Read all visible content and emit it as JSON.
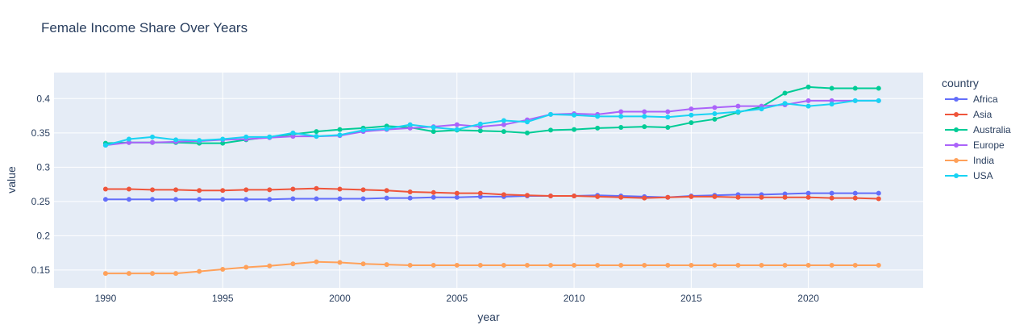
{
  "chart_data": {
    "type": "line",
    "title": "Female Income Share Over Years",
    "xlabel": "year",
    "ylabel": "value",
    "legend_title": "country",
    "legend_position": "right",
    "grid": true,
    "xlim": [
      1987.8,
      2024.9
    ],
    "ylim": [
      0.124,
      0.438
    ],
    "x_ticks": [
      1990,
      1995,
      2000,
      2005,
      2010,
      2015,
      2020
    ],
    "y_ticks": [
      0.15,
      0.2,
      0.25,
      0.3,
      0.35,
      0.4
    ],
    "y_tick_labels": [
      "0.15",
      "0.2",
      "0.25",
      "0.3",
      "0.35",
      "0.4"
    ],
    "x": [
      1990,
      1991,
      1992,
      1993,
      1994,
      1995,
      1996,
      1997,
      1998,
      1999,
      2000,
      2001,
      2002,
      2003,
      2004,
      2005,
      2006,
      2007,
      2008,
      2009,
      2010,
      2011,
      2012,
      2013,
      2014,
      2015,
      2016,
      2017,
      2018,
      2019,
      2020,
      2021,
      2022,
      2023
    ],
    "series": [
      {
        "name": "Africa",
        "color": "#636efa",
        "values": [
          0.253,
          0.253,
          0.253,
          0.253,
          0.253,
          0.253,
          0.253,
          0.253,
          0.254,
          0.254,
          0.254,
          0.254,
          0.255,
          0.255,
          0.256,
          0.256,
          0.257,
          0.257,
          0.258,
          0.258,
          0.258,
          0.259,
          0.258,
          0.257,
          0.256,
          0.258,
          0.259,
          0.26,
          0.26,
          0.261,
          0.262,
          0.262,
          0.262,
          0.262
        ]
      },
      {
        "name": "Asia",
        "color": "#EF553B",
        "values": [
          0.268,
          0.268,
          0.267,
          0.267,
          0.266,
          0.266,
          0.267,
          0.267,
          0.268,
          0.269,
          0.268,
          0.267,
          0.266,
          0.264,
          0.263,
          0.262,
          0.262,
          0.26,
          0.259,
          0.258,
          0.258,
          0.257,
          0.256,
          0.255,
          0.256,
          0.257,
          0.257,
          0.256,
          0.256,
          0.256,
          0.256,
          0.255,
          0.255,
          0.254
        ]
      },
      {
        "name": "Australia",
        "color": "#00cc96",
        "values": [
          0.335,
          0.336,
          0.336,
          0.336,
          0.335,
          0.335,
          0.34,
          0.344,
          0.348,
          0.352,
          0.355,
          0.357,
          0.36,
          0.358,
          0.352,
          0.354,
          0.353,
          0.352,
          0.35,
          0.354,
          0.355,
          0.357,
          0.358,
          0.359,
          0.358,
          0.365,
          0.37,
          0.38,
          0.388,
          0.408,
          0.417,
          0.415,
          0.415,
          0.415
        ]
      },
      {
        "name": "Europe",
        "color": "#ab63fa",
        "values": [
          0.332,
          0.336,
          0.336,
          0.337,
          0.338,
          0.34,
          0.341,
          0.343,
          0.345,
          0.345,
          0.346,
          0.352,
          0.355,
          0.357,
          0.359,
          0.362,
          0.359,
          0.362,
          0.369,
          0.377,
          0.378,
          0.377,
          0.381,
          0.381,
          0.381,
          0.385,
          0.387,
          0.389,
          0.389,
          0.391,
          0.397,
          0.397,
          0.397,
          0.397
        ]
      },
      {
        "name": "India",
        "color": "#FFA15A",
        "values": [
          0.145,
          0.145,
          0.145,
          0.145,
          0.148,
          0.151,
          0.154,
          0.156,
          0.159,
          0.162,
          0.161,
          0.159,
          0.158,
          0.157,
          0.157,
          0.157,
          0.157,
          0.157,
          0.157,
          0.157,
          0.157,
          0.157,
          0.157,
          0.157,
          0.157,
          0.157,
          0.157,
          0.157,
          0.157,
          0.157,
          0.157,
          0.157,
          0.157,
          0.157
        ]
      },
      {
        "name": "USA",
        "color": "#19d3f3",
        "values": [
          0.332,
          0.341,
          0.344,
          0.34,
          0.339,
          0.341,
          0.344,
          0.344,
          0.35,
          0.345,
          0.347,
          0.354,
          0.356,
          0.362,
          0.358,
          0.355,
          0.363,
          0.368,
          0.366,
          0.377,
          0.376,
          0.374,
          0.374,
          0.374,
          0.373,
          0.376,
          0.378,
          0.381,
          0.385,
          0.393,
          0.389,
          0.392,
          0.397,
          0.397
        ]
      }
    ]
  }
}
